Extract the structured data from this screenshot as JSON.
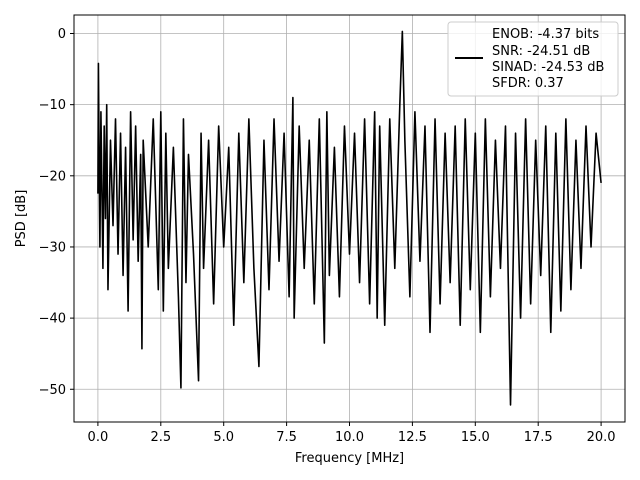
{
  "chart_data": {
    "type": "line",
    "title": "",
    "xlabel": "Frequency [MHz]",
    "ylabel": "PSD [dB]",
    "xlim": [
      -0.95,
      20.95
    ],
    "ylim": [
      -54.6,
      2.6
    ],
    "xticks": [
      0.0,
      2.5,
      5.0,
      7.5,
      10.0,
      12.5,
      15.0,
      17.5,
      20.0
    ],
    "xtick_labels": [
      "0.0",
      "2.5",
      "5.0",
      "7.5",
      "10.0",
      "12.5",
      "15.0",
      "17.5",
      "20.0"
    ],
    "yticks": [
      0,
      -10,
      -20,
      -30,
      -40,
      -50
    ],
    "ytick_labels": [
      "0",
      "−10",
      "−20",
      "−30",
      "−40",
      "−50"
    ],
    "grid": true,
    "legend_position": "top-right",
    "legend": [
      "ENOB: -4.37 bits",
      "SNR: -24.51 dB",
      "SINAD: -24.53 dB",
      "SFDR: 0.37"
    ],
    "series": [
      {
        "color": "#000000",
        "x": [
          0.0,
          0.02,
          0.05,
          0.08,
          0.12,
          0.2,
          0.25,
          0.3,
          0.35,
          0.4,
          0.5,
          0.6,
          0.7,
          0.8,
          0.9,
          1.0,
          1.1,
          1.2,
          1.3,
          1.4,
          1.5,
          1.6,
          1.7,
          1.75,
          1.8,
          2.0,
          2.2,
          2.4,
          2.5,
          2.6,
          2.7,
          2.8,
          3.0,
          3.2,
          3.3,
          3.4,
          3.5,
          3.6,
          3.8,
          4.0,
          4.1,
          4.2,
          4.4,
          4.6,
          4.8,
          5.0,
          5.2,
          5.4,
          5.6,
          5.8,
          6.0,
          6.2,
          6.4,
          6.6,
          6.8,
          7.0,
          7.2,
          7.4,
          7.6,
          7.75,
          7.8,
          8.0,
          8.2,
          8.4,
          8.6,
          8.8,
          9.0,
          9.1,
          9.2,
          9.4,
          9.6,
          9.8,
          10.0,
          10.2,
          10.4,
          10.6,
          10.8,
          11.0,
          11.1,
          11.2,
          11.4,
          11.6,
          11.8,
          12.0,
          12.1,
          12.2,
          12.4,
          12.6,
          12.8,
          13.0,
          13.2,
          13.4,
          13.6,
          13.8,
          14.0,
          14.2,
          14.4,
          14.6,
          14.8,
          15.0,
          15.2,
          15.4,
          15.6,
          15.8,
          16.0,
          16.2,
          16.4,
          16.6,
          16.8,
          17.0,
          17.2,
          17.4,
          17.6,
          17.8,
          18.0,
          18.2,
          18.4,
          18.6,
          18.8,
          19.0,
          19.2,
          19.4,
          19.6,
          19.8,
          20.0
        ],
        "y": [
          -22.5,
          -4.2,
          -18,
          -30,
          -11,
          -33,
          -13,
          -26,
          -10,
          -36,
          -15,
          -27,
          -12,
          -31,
          -14,
          -34,
          -16,
          -39,
          -11,
          -29,
          -13,
          -32,
          -17,
          -44.3,
          -15,
          -30,
          -12,
          -36,
          -11,
          -39,
          -14,
          -33,
          -16,
          -37,
          -49.8,
          -12,
          -35,
          -17,
          -31,
          -48.8,
          -14,
          -33,
          -15,
          -38,
          -13,
          -30,
          -16,
          -41,
          -14,
          -35,
          -12,
          -33,
          -46.8,
          -15,
          -36,
          -12,
          -32,
          -14,
          -37,
          -9,
          -40,
          -13,
          -33,
          -15,
          -38,
          -12,
          -43.5,
          -11,
          -34,
          -16,
          -37,
          -13,
          -31,
          -14,
          -35,
          -12,
          -38,
          -11,
          -40,
          -13,
          -41,
          -12,
          -33,
          -10,
          0.3,
          -15,
          -37,
          -11,
          -32,
          -13,
          -42,
          -12,
          -38,
          -14,
          -35,
          -13,
          -41,
          -12,
          -36,
          -14,
          -42,
          -12,
          -37,
          -15,
          -33,
          -13,
          -52.2,
          -14,
          -40,
          -12,
          -38,
          -15,
          -34,
          -13,
          -42,
          -14,
          -39,
          -12,
          -36,
          -15,
          -33,
          -13,
          -30,
          -14,
          -21
        ]
      }
    ]
  }
}
